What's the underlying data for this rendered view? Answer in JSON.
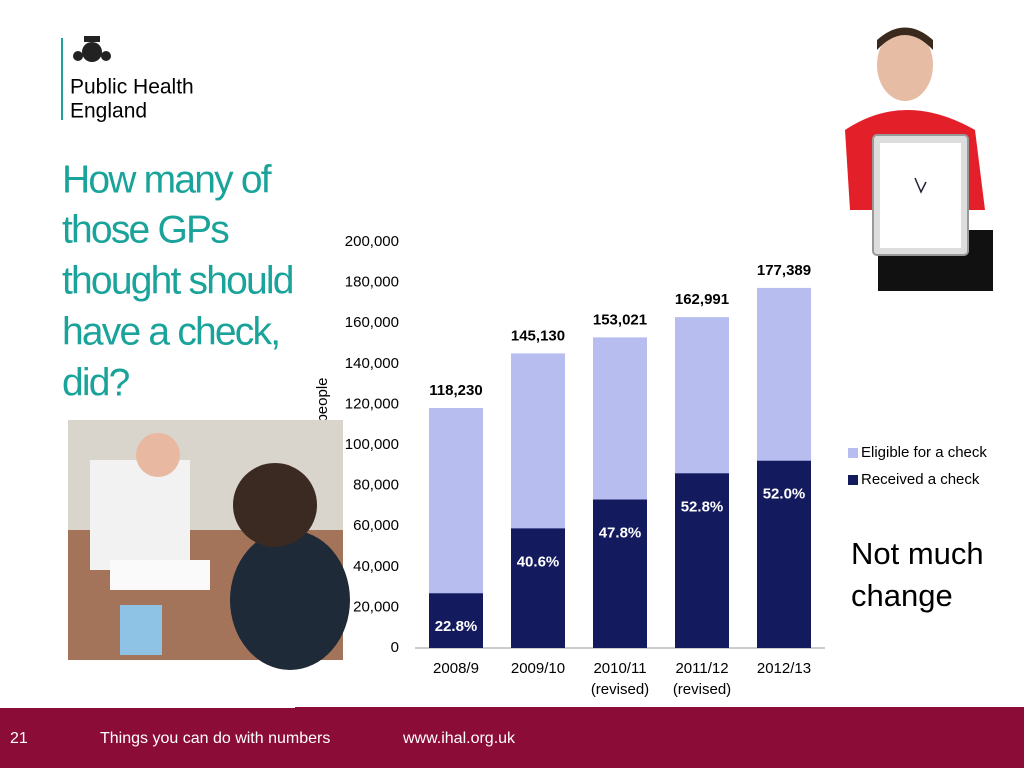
{
  "header": {
    "org_lines": [
      "Public Health",
      "England"
    ]
  },
  "heading_lines": [
    "How many of",
    "those GPs",
    "thought should",
    "have a check,",
    "did?"
  ],
  "chart_data": {
    "type": "bar",
    "overlap": true,
    "categories": [
      "2008/9",
      "2009/10",
      "2010/11 (revised)",
      "2011/12 (revised)",
      "2012/13"
    ],
    "y_label": "people",
    "series": [
      {
        "name": "Eligible for a check",
        "color": "#b8bdf0",
        "values": [
          118230,
          145130,
          153021,
          162991,
          177389
        ],
        "value_labels": [
          "118,230",
          "145,130",
          "153,021",
          "162,991",
          "177,389"
        ]
      },
      {
        "name": "Received a check",
        "color": "#141a5e",
        "values": [
          26956,
          58923,
          73144,
          86059,
          92242
        ],
        "share_labels": [
          "22.8%",
          "40.6%",
          "47.8%",
          "52.8%",
          "52.0%"
        ]
      }
    ],
    "ylim": [
      0,
      200000
    ],
    "yticks": [
      0,
      {
        "value": 20000,
        "label": "20,000"
      },
      {
        "value": 40000,
        "label": "40,000"
      },
      {
        "value": 60000,
        "label": "60,000"
      },
      {
        "value": 80000,
        "label": "80,000"
      },
      {
        "value": 100000,
        "label": "100,000"
      },
      {
        "value": 120000,
        "label": "120,000"
      },
      {
        "value": 140000,
        "label": "140,000"
      },
      {
        "value": 160000,
        "label": "160,000"
      },
      {
        "value": 180000,
        "label": "180,000"
      },
      {
        "value": 200000,
        "label": "200,000"
      }
    ],
    "grid": false,
    "legend": "right"
  },
  "annotation_lines": [
    "Not much",
    "change"
  ],
  "footer": {
    "page": "21",
    "title": "Things you can do with numbers",
    "url": "www.ihal.org.uk"
  }
}
